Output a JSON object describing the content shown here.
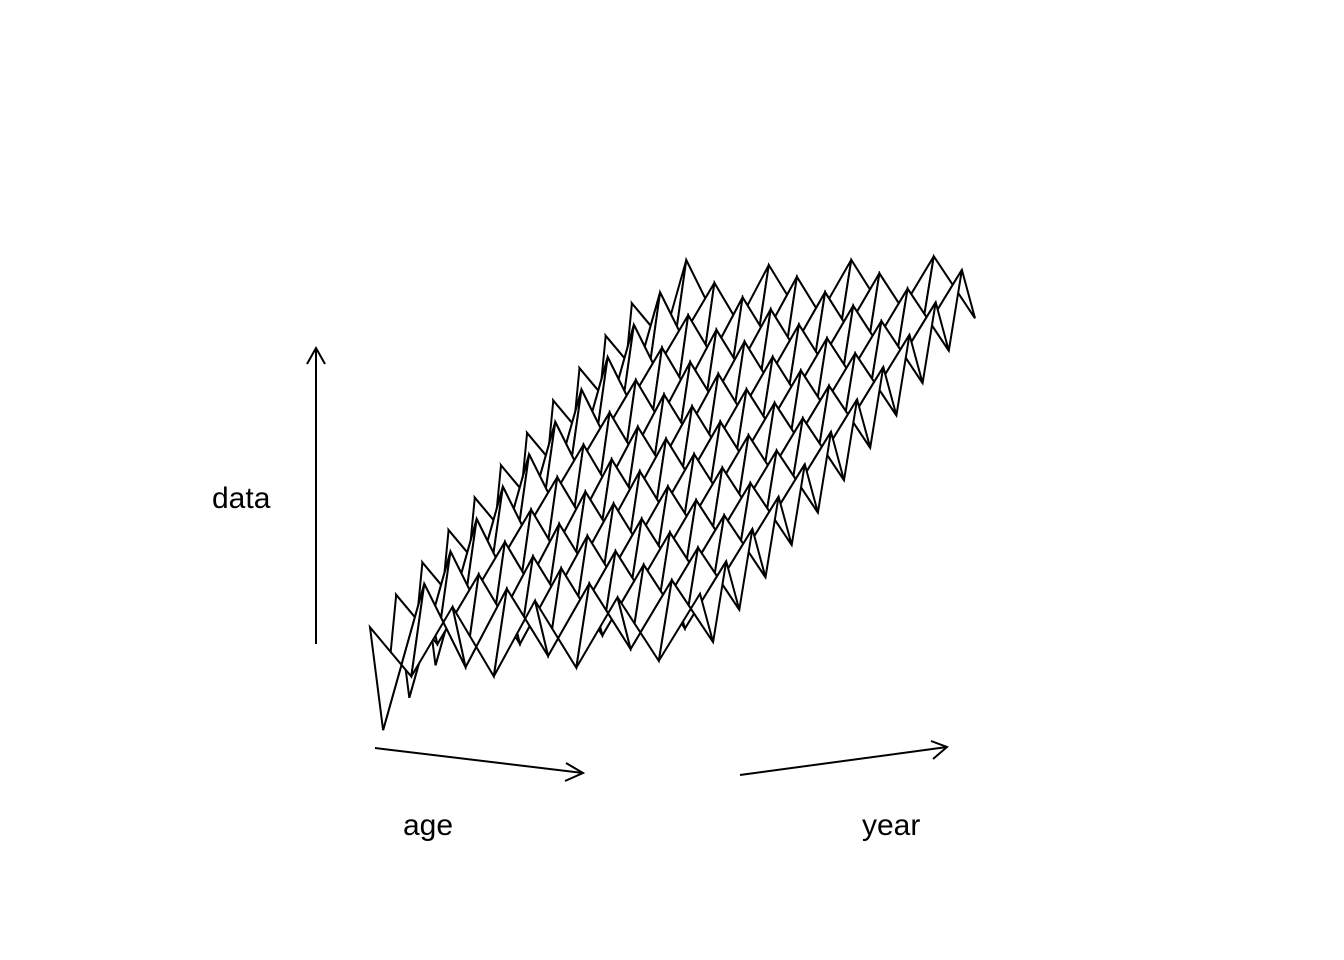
{
  "chart_data": {
    "type": "surface",
    "title": "",
    "xlabel": "age",
    "ylabel": "year",
    "zlabel": "data",
    "axes_as_arrows": true,
    "grid": false,
    "legend": "none",
    "colors": {
      "line": "#000000",
      "facet": "#ffffff",
      "background": "#ffffff"
    },
    "age_count": 9,
    "year_count": 22,
    "surface": {
      "base_age_trend": [
        -0.55,
        0.05,
        0.0,
        0.08,
        0.16,
        0.22,
        0.28,
        0.34,
        0.4
      ],
      "year_trend": 0.0,
      "oscillation": [
        1.0,
        -1.0
      ],
      "oscillation_amplitude_by_age": [
        0.7,
        0.45,
        0.45,
        0.42,
        0.42,
        0.4,
        0.4,
        0.38,
        0.38
      ]
    }
  }
}
